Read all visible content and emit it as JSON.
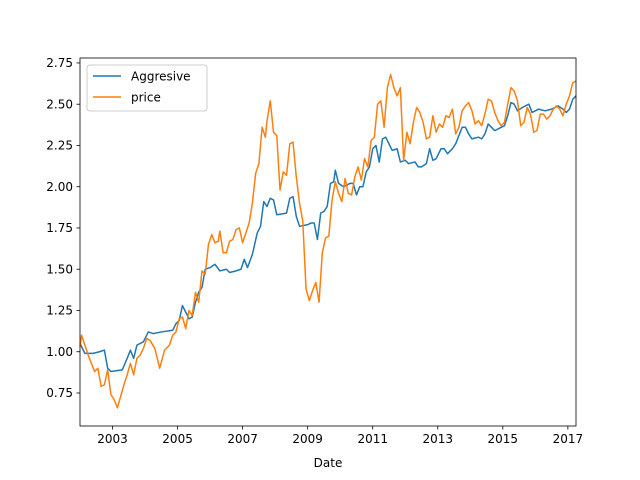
{
  "chart_data": {
    "type": "line",
    "title": "",
    "xlabel": "Date",
    "ylabel": "",
    "xlim": [
      2002.0,
      2017.25
    ],
    "ylim": [
      0.55,
      2.78
    ],
    "x_ticks": [
      2003,
      2005,
      2007,
      2009,
      2011,
      2013,
      2015,
      2017
    ],
    "x_tick_labels": [
      "2003",
      "2005",
      "2007",
      "2009",
      "2011",
      "2013",
      "2015",
      "2017"
    ],
    "y_ticks": [
      0.75,
      1.0,
      1.25,
      1.5,
      1.75,
      2.0,
      2.25,
      2.5,
      2.75
    ],
    "y_tick_labels": [
      "0.75",
      "1.00",
      "1.25",
      "1.50",
      "1.75",
      "2.00",
      "2.25",
      "2.50",
      "2.75"
    ],
    "grid": false,
    "legend_position": "upper-left",
    "series": [
      {
        "name": "Aggresive",
        "color": "#1f77b4",
        "points": [
          [
            2002.0,
            1.05
          ],
          [
            2002.15,
            0.99
          ],
          [
            2002.4,
            0.99
          ],
          [
            2002.6,
            1.0
          ],
          [
            2002.75,
            1.01
          ],
          [
            2002.85,
            0.9
          ],
          [
            2002.95,
            0.88
          ],
          [
            2003.3,
            0.89
          ],
          [
            2003.45,
            0.96
          ],
          [
            2003.55,
            1.01
          ],
          [
            2003.65,
            0.96
          ],
          [
            2003.75,
            1.04
          ],
          [
            2003.95,
            1.06
          ],
          [
            2004.1,
            1.12
          ],
          [
            2004.25,
            1.11
          ],
          [
            2004.5,
            1.12
          ],
          [
            2004.85,
            1.13
          ],
          [
            2004.95,
            1.17
          ],
          [
            2005.05,
            1.19
          ],
          [
            2005.15,
            1.28
          ],
          [
            2005.25,
            1.24
          ],
          [
            2005.35,
            1.2
          ],
          [
            2005.45,
            1.21
          ],
          [
            2005.55,
            1.3
          ],
          [
            2005.65,
            1.36
          ],
          [
            2005.75,
            1.39
          ],
          [
            2005.85,
            1.5
          ],
          [
            2006.0,
            1.51
          ],
          [
            2006.15,
            1.53
          ],
          [
            2006.3,
            1.49
          ],
          [
            2006.5,
            1.5
          ],
          [
            2006.6,
            1.48
          ],
          [
            2006.8,
            1.49
          ],
          [
            2006.95,
            1.5
          ],
          [
            2007.05,
            1.56
          ],
          [
            2007.15,
            1.51
          ],
          [
            2007.3,
            1.59
          ],
          [
            2007.45,
            1.72
          ],
          [
            2007.55,
            1.76
          ],
          [
            2007.65,
            1.91
          ],
          [
            2007.75,
            1.88
          ],
          [
            2007.85,
            1.93
          ],
          [
            2007.95,
            1.92
          ],
          [
            2008.05,
            1.83
          ],
          [
            2008.35,
            1.84
          ],
          [
            2008.45,
            1.93
          ],
          [
            2008.55,
            1.94
          ],
          [
            2008.65,
            1.82
          ],
          [
            2008.75,
            1.76
          ],
          [
            2009.0,
            1.77
          ],
          [
            2009.1,
            1.78
          ],
          [
            2009.2,
            1.78
          ],
          [
            2009.3,
            1.68
          ],
          [
            2009.4,
            1.84
          ],
          [
            2009.5,
            1.85
          ],
          [
            2009.6,
            1.88
          ],
          [
            2009.7,
            2.02
          ],
          [
            2009.8,
            2.03
          ],
          [
            2009.85,
            2.1
          ],
          [
            2009.95,
            2.02
          ],
          [
            2010.1,
            2.0
          ],
          [
            2010.3,
            2.02
          ],
          [
            2010.4,
            2.02
          ],
          [
            2010.5,
            1.95
          ],
          [
            2010.6,
            2.0
          ],
          [
            2010.7,
            2.0
          ],
          [
            2010.8,
            2.09
          ],
          [
            2010.9,
            2.12
          ],
          [
            2011.0,
            2.23
          ],
          [
            2011.1,
            2.25
          ],
          [
            2011.2,
            2.15
          ],
          [
            2011.3,
            2.29
          ],
          [
            2011.4,
            2.3
          ],
          [
            2011.6,
            2.22
          ],
          [
            2011.75,
            2.23
          ],
          [
            2011.85,
            2.15
          ],
          [
            2012.0,
            2.16
          ],
          [
            2012.1,
            2.14
          ],
          [
            2012.3,
            2.15
          ],
          [
            2012.4,
            2.12
          ],
          [
            2012.5,
            2.12
          ],
          [
            2012.65,
            2.14
          ],
          [
            2012.75,
            2.23
          ],
          [
            2012.85,
            2.16
          ],
          [
            2012.95,
            2.17
          ],
          [
            2013.1,
            2.23
          ],
          [
            2013.2,
            2.23
          ],
          [
            2013.3,
            2.2
          ],
          [
            2013.45,
            2.23
          ],
          [
            2013.55,
            2.26
          ],
          [
            2013.65,
            2.31
          ],
          [
            2013.75,
            2.36
          ],
          [
            2013.85,
            2.36
          ],
          [
            2013.95,
            2.32
          ],
          [
            2014.05,
            2.29
          ],
          [
            2014.25,
            2.3
          ],
          [
            2014.35,
            2.29
          ],
          [
            2014.45,
            2.32
          ],
          [
            2014.55,
            2.38
          ],
          [
            2014.65,
            2.36
          ],
          [
            2014.75,
            2.34
          ],
          [
            2014.95,
            2.36
          ],
          [
            2015.05,
            2.37
          ],
          [
            2015.15,
            2.43
          ],
          [
            2015.25,
            2.51
          ],
          [
            2015.35,
            2.5
          ],
          [
            2015.45,
            2.46
          ],
          [
            2015.6,
            2.48
          ],
          [
            2015.8,
            2.5
          ],
          [
            2015.9,
            2.45
          ],
          [
            2016.1,
            2.47
          ],
          [
            2016.3,
            2.46
          ],
          [
            2016.5,
            2.47
          ],
          [
            2016.7,
            2.49
          ],
          [
            2016.85,
            2.47
          ],
          [
            2016.95,
            2.45
          ],
          [
            2017.05,
            2.47
          ],
          [
            2017.15,
            2.53
          ],
          [
            2017.25,
            2.55
          ]
        ]
      },
      {
        "name": "price",
        "color": "#ff7f0e",
        "points": [
          [
            2002.0,
            1.03
          ],
          [
            2002.05,
            1.1
          ],
          [
            2002.15,
            1.04
          ],
          [
            2002.25,
            0.98
          ],
          [
            2002.35,
            0.93
          ],
          [
            2002.45,
            0.88
          ],
          [
            2002.55,
            0.9
          ],
          [
            2002.65,
            0.79
          ],
          [
            2002.75,
            0.8
          ],
          [
            2002.85,
            0.89
          ],
          [
            2002.95,
            0.74
          ],
          [
            2003.05,
            0.71
          ],
          [
            2003.15,
            0.66
          ],
          [
            2003.25,
            0.73
          ],
          [
            2003.35,
            0.8
          ],
          [
            2003.45,
            0.86
          ],
          [
            2003.55,
            0.93
          ],
          [
            2003.65,
            0.86
          ],
          [
            2003.75,
            0.96
          ],
          [
            2003.85,
            0.98
          ],
          [
            2003.95,
            1.02
          ],
          [
            2004.05,
            1.08
          ],
          [
            2004.15,
            1.07
          ],
          [
            2004.3,
            1.02
          ],
          [
            2004.45,
            0.9
          ],
          [
            2004.6,
            1.01
          ],
          [
            2004.75,
            1.04
          ],
          [
            2004.85,
            1.1
          ],
          [
            2004.95,
            1.12
          ],
          [
            2005.05,
            1.2
          ],
          [
            2005.15,
            1.21
          ],
          [
            2005.25,
            1.14
          ],
          [
            2005.35,
            1.25
          ],
          [
            2005.45,
            1.22
          ],
          [
            2005.55,
            1.36
          ],
          [
            2005.65,
            1.3
          ],
          [
            2005.75,
            1.49
          ],
          [
            2005.85,
            1.47
          ],
          [
            2005.95,
            1.65
          ],
          [
            2006.05,
            1.71
          ],
          [
            2006.15,
            1.66
          ],
          [
            2006.25,
            1.67
          ],
          [
            2006.3,
            1.73
          ],
          [
            2006.4,
            1.6
          ],
          [
            2006.5,
            1.6
          ],
          [
            2006.6,
            1.67
          ],
          [
            2006.7,
            1.68
          ],
          [
            2006.8,
            1.74
          ],
          [
            2006.9,
            1.75
          ],
          [
            2007.0,
            1.66
          ],
          [
            2007.1,
            1.72
          ],
          [
            2007.2,
            1.78
          ],
          [
            2007.3,
            1.9
          ],
          [
            2007.4,
            2.08
          ],
          [
            2007.5,
            2.14
          ],
          [
            2007.6,
            2.36
          ],
          [
            2007.7,
            2.3
          ],
          [
            2007.75,
            2.4
          ],
          [
            2007.85,
            2.52
          ],
          [
            2007.95,
            2.33
          ],
          [
            2008.05,
            2.31
          ],
          [
            2008.15,
            1.98
          ],
          [
            2008.25,
            2.09
          ],
          [
            2008.35,
            2.07
          ],
          [
            2008.45,
            2.26
          ],
          [
            2008.55,
            2.27
          ],
          [
            2008.65,
            2.06
          ],
          [
            2008.75,
            1.9
          ],
          [
            2008.85,
            1.79
          ],
          [
            2008.95,
            1.38
          ],
          [
            2009.05,
            1.31
          ],
          [
            2009.15,
            1.37
          ],
          [
            2009.25,
            1.42
          ],
          [
            2009.35,
            1.3
          ],
          [
            2009.45,
            1.6
          ],
          [
            2009.55,
            1.69
          ],
          [
            2009.65,
            1.7
          ],
          [
            2009.75,
            1.92
          ],
          [
            2009.85,
            2.03
          ],
          [
            2009.95,
            1.96
          ],
          [
            2010.05,
            1.91
          ],
          [
            2010.15,
            2.05
          ],
          [
            2010.25,
            1.96
          ],
          [
            2010.35,
            1.95
          ],
          [
            2010.45,
            2.06
          ],
          [
            2010.55,
            2.12
          ],
          [
            2010.65,
            2.04
          ],
          [
            2010.75,
            2.17
          ],
          [
            2010.85,
            2.12
          ],
          [
            2010.95,
            2.28
          ],
          [
            2011.05,
            2.3
          ],
          [
            2011.15,
            2.5
          ],
          [
            2011.25,
            2.52
          ],
          [
            2011.35,
            2.36
          ],
          [
            2011.45,
            2.6
          ],
          [
            2011.55,
            2.68
          ],
          [
            2011.65,
            2.6
          ],
          [
            2011.75,
            2.55
          ],
          [
            2011.85,
            2.6
          ],
          [
            2011.95,
            2.16
          ],
          [
            2012.05,
            2.33
          ],
          [
            2012.15,
            2.26
          ],
          [
            2012.25,
            2.39
          ],
          [
            2012.35,
            2.48
          ],
          [
            2012.45,
            2.45
          ],
          [
            2012.55,
            2.39
          ],
          [
            2012.65,
            2.29
          ],
          [
            2012.75,
            2.3
          ],
          [
            2012.85,
            2.43
          ],
          [
            2012.95,
            2.33
          ],
          [
            2013.05,
            2.38
          ],
          [
            2013.15,
            2.36
          ],
          [
            2013.25,
            2.43
          ],
          [
            2013.35,
            2.42
          ],
          [
            2013.45,
            2.47
          ],
          [
            2013.55,
            2.32
          ],
          [
            2013.65,
            2.36
          ],
          [
            2013.75,
            2.46
          ],
          [
            2013.85,
            2.49
          ],
          [
            2013.95,
            2.51
          ],
          [
            2014.05,
            2.46
          ],
          [
            2014.15,
            2.38
          ],
          [
            2014.25,
            2.4
          ],
          [
            2014.35,
            2.37
          ],
          [
            2014.45,
            2.44
          ],
          [
            2014.55,
            2.53
          ],
          [
            2014.65,
            2.52
          ],
          [
            2014.75,
            2.45
          ],
          [
            2014.85,
            2.4
          ],
          [
            2014.95,
            2.37
          ],
          [
            2015.05,
            2.39
          ],
          [
            2015.15,
            2.5
          ],
          [
            2015.25,
            2.6
          ],
          [
            2015.35,
            2.58
          ],
          [
            2015.45,
            2.52
          ],
          [
            2015.55,
            2.37
          ],
          [
            2015.65,
            2.39
          ],
          [
            2015.75,
            2.48
          ],
          [
            2015.85,
            2.44
          ],
          [
            2015.95,
            2.33
          ],
          [
            2016.05,
            2.34
          ],
          [
            2016.15,
            2.44
          ],
          [
            2016.25,
            2.44
          ],
          [
            2016.35,
            2.41
          ],
          [
            2016.45,
            2.43
          ],
          [
            2016.55,
            2.47
          ],
          [
            2016.65,
            2.49
          ],
          [
            2016.75,
            2.47
          ],
          [
            2016.85,
            2.43
          ],
          [
            2016.95,
            2.5
          ],
          [
            2017.05,
            2.55
          ],
          [
            2017.15,
            2.63
          ],
          [
            2017.25,
            2.64
          ]
        ]
      }
    ]
  }
}
